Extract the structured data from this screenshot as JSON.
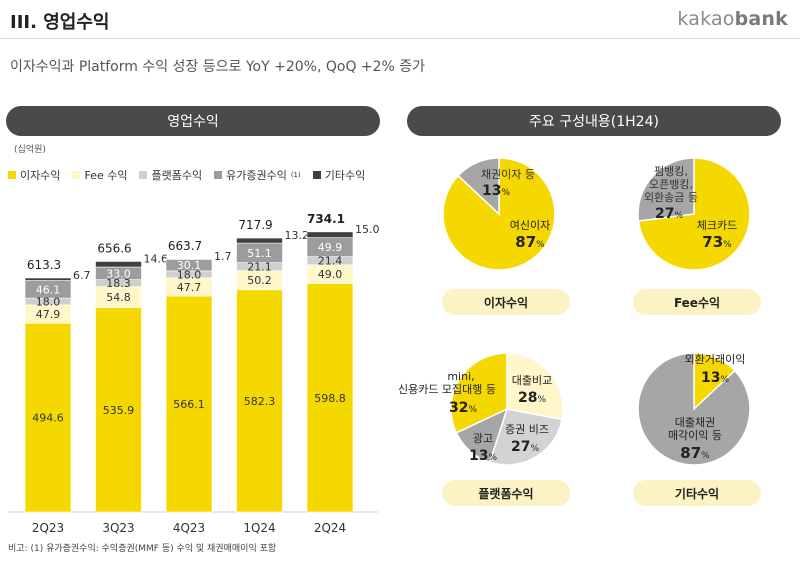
{
  "header": {
    "title": "III. 영업수익",
    "logo_a": "kakao",
    "logo_b": "bank"
  },
  "subtitle": "이자수익과 Platform 수익 성장 등으로 YoY +20%, QoQ +2% 증가",
  "left_panel": {
    "title": "영업수익",
    "unit": "(십억원)"
  },
  "right_panel": {
    "title": "주요 구성내용(1H24)"
  },
  "legend": [
    {
      "label": "이자수익",
      "color": "#f5d800"
    },
    {
      "label": "Fee 수익",
      "color": "#fff6c9"
    },
    {
      "label": "플랫폼수익",
      "color": "#cfcfcf"
    },
    {
      "label": "유가증권수익",
      "sup": "(1)",
      "color": "#9c9c9c"
    },
    {
      "label": "기타수익",
      "color": "#3f3f3f"
    }
  ],
  "chart_data": [
    {
      "type": "bar",
      "stacked": true,
      "categories": [
        "2Q23",
        "3Q23",
        "4Q23",
        "1Q24",
        "2Q24"
      ],
      "series": [
        {
          "name": "이자수익",
          "color": "#f5d800",
          "values": [
            494.6,
            535.9,
            566.1,
            582.3,
            598.8
          ]
        },
        {
          "name": "Fee 수익",
          "color": "#fff6c9",
          "values": [
            47.9,
            54.8,
            47.7,
            50.2,
            49.0
          ]
        },
        {
          "name": "플랫폼수익",
          "color": "#cfcfcf",
          "values": [
            18.0,
            18.3,
            18.0,
            21.1,
            21.4
          ]
        },
        {
          "name": "유가증권수익",
          "color": "#9c9c9c",
          "values": [
            46.1,
            33.0,
            30.1,
            51.1,
            49.9
          ]
        },
        {
          "name": "기타수익",
          "color": "#3f3f3f",
          "values": [
            6.7,
            14.6,
            1.7,
            13.2,
            15.0
          ]
        }
      ],
      "totals": [
        613.3,
        656.6,
        663.7,
        717.9,
        734.1
      ],
      "value_labels": {
        "이자수익": [
          "494.6",
          "535.9",
          "566.1",
          "582.3",
          "598.8"
        ],
        "Fee 수익": [
          "47.9",
          "54.8",
          "47.7",
          "50.2",
          "49.0"
        ],
        "플랫폼수익": [
          "18.0",
          "18.3",
          "18.0",
          "21.1",
          "21.4"
        ],
        "유가증권수익": [
          "46.1",
          "33.0",
          "30.1",
          "51.1",
          "49.9"
        ],
        "기타수익": [
          "6.7",
          "14.6",
          "1.7",
          "13.2",
          "15.0"
        ]
      },
      "ylim": [
        0,
        760
      ]
    },
    {
      "type": "pie",
      "title": "이자수익",
      "slices": [
        {
          "label": "여신이자",
          "value": 87,
          "color": "#f5d800"
        },
        {
          "label": "채권이자 등",
          "value": 13,
          "color": "#a6a6a6"
        }
      ]
    },
    {
      "type": "pie",
      "title": "Fee수익",
      "slices": [
        {
          "label": "체크카드",
          "value": 73,
          "color": "#f5d800"
        },
        {
          "label": "펌뱅킹, 오픈뱅킹, 외환송금 등",
          "value": 27,
          "color": "#a6a6a6"
        }
      ]
    },
    {
      "type": "pie",
      "title": "플랫폼수익",
      "slices": [
        {
          "label": "대출비교",
          "value": 28,
          "color": "#fff6c9"
        },
        {
          "label": "증권 비즈",
          "value": 27,
          "color": "#d3d3d3"
        },
        {
          "label": "광고",
          "value": 13,
          "color": "#a6a6a6"
        },
        {
          "label": "mini, 신용카드 모집대행 등",
          "value": 32,
          "color": "#f5d800"
        }
      ]
    },
    {
      "type": "pie",
      "title": "기타수익",
      "slices": [
        {
          "label": "외환거래이익",
          "value": 13,
          "color": "#f5d800"
        },
        {
          "label": "대출채권 매각이익 등",
          "value": 87,
          "color": "#a6a6a6"
        }
      ]
    }
  ],
  "pie_texts": {
    "p1": {
      "a_line1": "여신이자",
      "a_pct": "87",
      "b_line1": "채권이자 등",
      "b_pct": "13",
      "pct_sign": "%",
      "title": "이자수익"
    },
    "p2": {
      "a_line1": "체크카드",
      "a_pct": "73",
      "b_line1": "펌뱅킹,",
      "b_line2": "오픈뱅킹,",
      "b_line3": "외환송금 등",
      "b_pct": "27",
      "pct_sign": "%",
      "title": "Fee수익"
    },
    "p3": {
      "a_line1": "대출비교",
      "a_pct": "28",
      "b_line1": "증권 비즈",
      "b_pct": "27",
      "c_line1": "광고",
      "c_pct": "13",
      "d_line1": "mini,",
      "d_line2": "신용카드 모집대행 등",
      "d_pct": "32",
      "pct_sign": "%",
      "title": "플랫폼수익"
    },
    "p4": {
      "a_line1": "외환거래이익",
      "a_pct": "13",
      "b_line1": "대출채권",
      "b_line2": "매각이익 등",
      "b_pct": "87",
      "pct_sign": "%",
      "title": "기타수익"
    }
  },
  "footnote": "비고:     (1) 유가증권수익: 수익증권(MMF 등) 수익 및 채권매매이익 포함"
}
